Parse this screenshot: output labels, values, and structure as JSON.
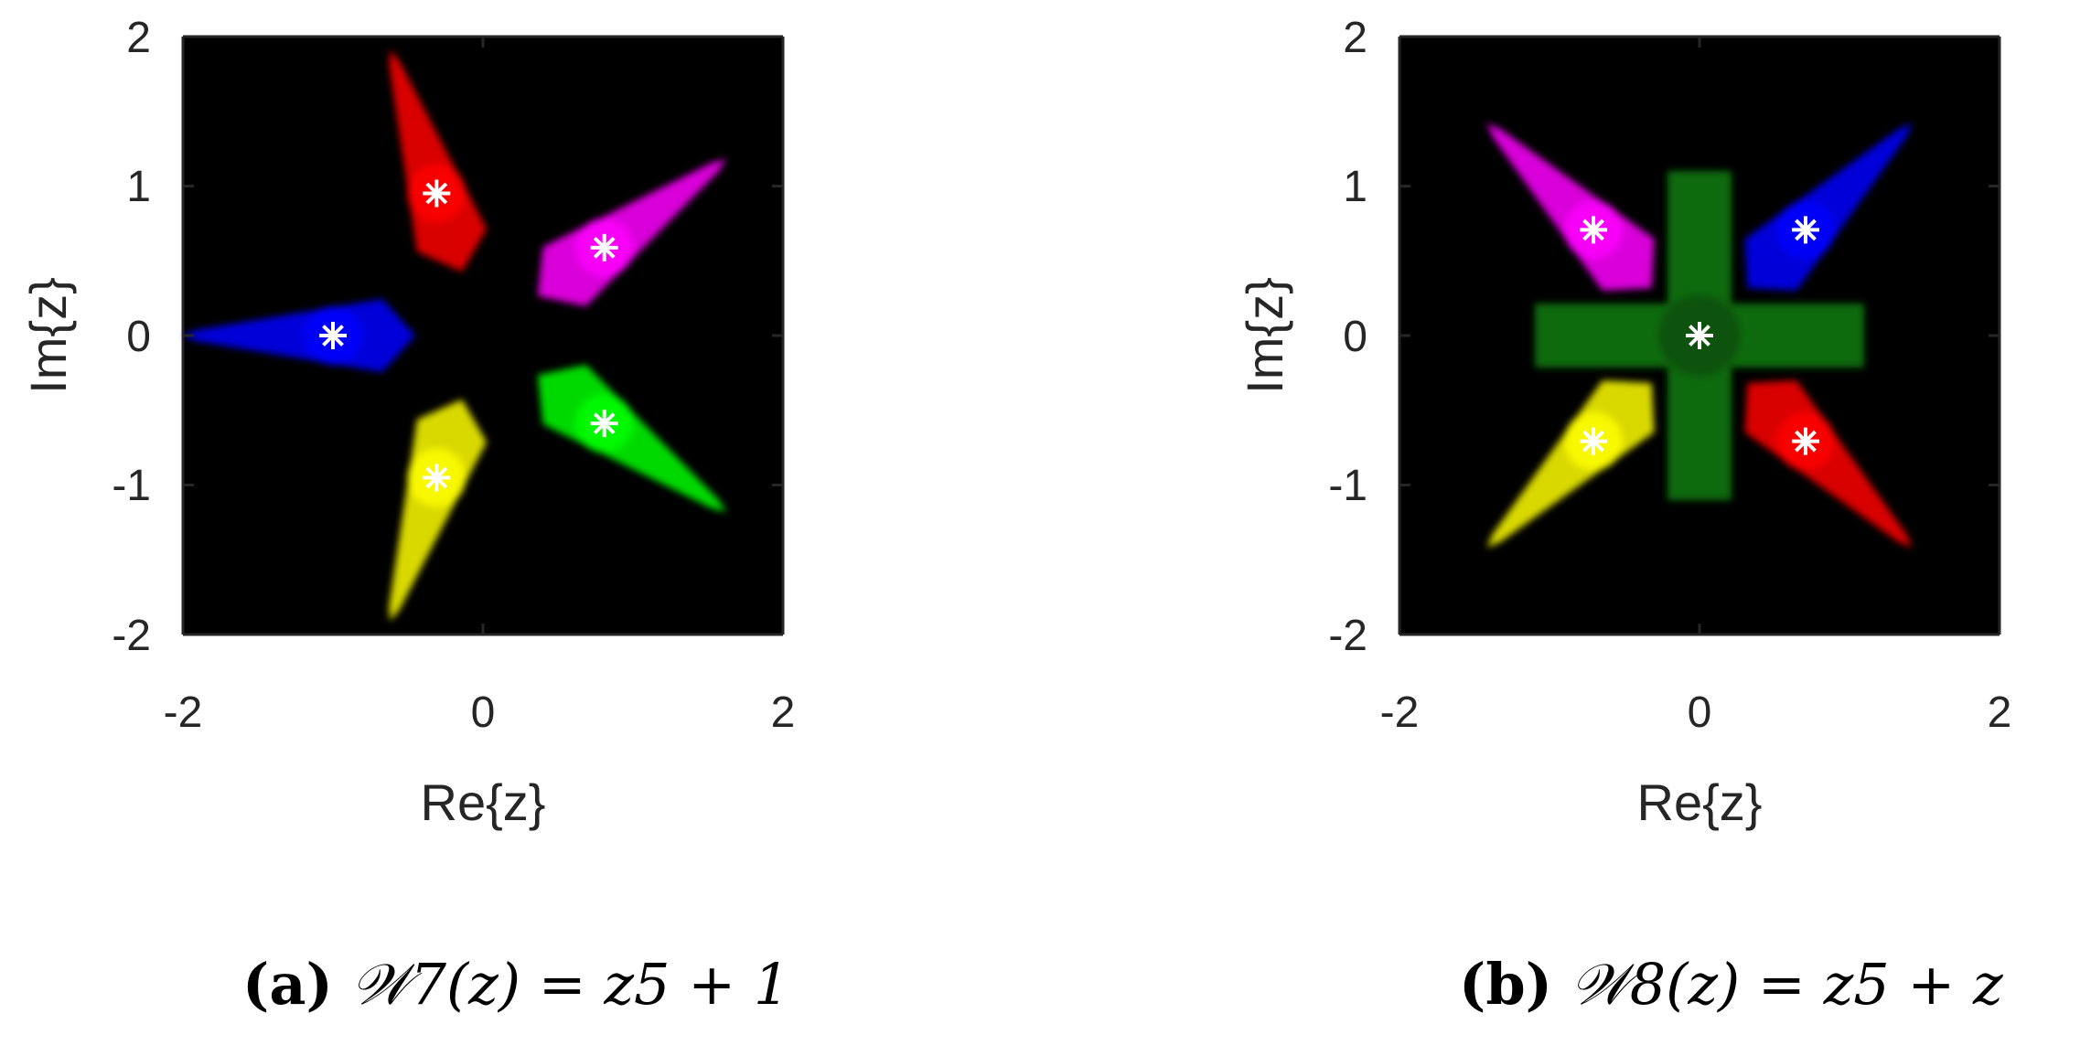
{
  "chart_data": [
    {
      "type": "scatter",
      "xlabel": "Re{z}",
      "ylabel": "Im{z}",
      "xlim": [
        -2,
        2
      ],
      "ylim": [
        -2,
        2
      ],
      "xticks": [
        "-2",
        "0",
        "2"
      ],
      "yticks": [
        "2",
        "1",
        "0",
        "-1",
        "-2"
      ],
      "grid": false,
      "background": "#000000",
      "caption_tag": "(a)",
      "caption_rest": "𝒲7(z) = z5 + 1",
      "roots": [
        {
          "x": -1.0,
          "y": 0.0,
          "color": "#0000ff"
        },
        {
          "x": -0.309,
          "y": 0.951,
          "color": "#ff0000"
        },
        {
          "x": 0.809,
          "y": 0.588,
          "color": "#ff00ff"
        },
        {
          "x": 0.809,
          "y": -0.588,
          "color": "#00ff00"
        },
        {
          "x": -0.309,
          "y": -0.951,
          "color": "#ffff00"
        }
      ]
    },
    {
      "type": "scatter",
      "xlabel": "Re{z}",
      "ylabel": "Im{z}",
      "xlim": [
        -2,
        2
      ],
      "ylim": [
        -2,
        2
      ],
      "xticks": [
        "-2",
        "0",
        "2"
      ],
      "yticks": [
        "2",
        "1",
        "0",
        "-1",
        "-2"
      ],
      "grid": false,
      "background": "#000000",
      "caption_tag": "(b)",
      "caption_rest": "𝒲8(z) = z5 + z",
      "roots": [
        {
          "x": 0.0,
          "y": 0.0,
          "color": "#00aa00"
        },
        {
          "x": 0.707,
          "y": 0.707,
          "color": "#0000ff"
        },
        {
          "x": -0.707,
          "y": 0.707,
          "color": "#ff00ff"
        },
        {
          "x": -0.707,
          "y": -0.707,
          "color": "#ffff00"
        },
        {
          "x": 0.707,
          "y": -0.707,
          "color": "#ff0000"
        }
      ]
    }
  ]
}
